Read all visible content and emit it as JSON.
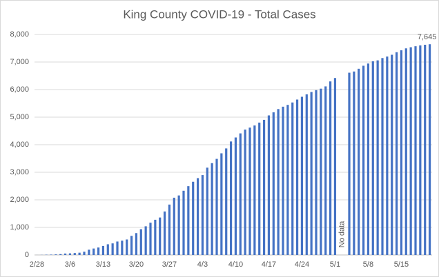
{
  "chart_data": {
    "type": "bar",
    "title": "King County COVID-19 - Total Cases",
    "categories": [
      "2/28",
      null,
      null,
      null,
      null,
      null,
      null,
      "3/6",
      null,
      null,
      null,
      null,
      null,
      null,
      "3/13",
      null,
      null,
      null,
      null,
      null,
      null,
      "3/20",
      null,
      null,
      null,
      null,
      null,
      null,
      "3/27",
      null,
      null,
      null,
      null,
      null,
      null,
      "4/3",
      null,
      null,
      null,
      null,
      null,
      null,
      "4/10",
      null,
      null,
      null,
      null,
      null,
      null,
      "4/17",
      null,
      null,
      null,
      null,
      null,
      null,
      "4/24",
      null,
      null,
      null,
      null,
      null,
      null,
      "5/1",
      null,
      null,
      null,
      null,
      null,
      null,
      "5/8",
      null,
      null,
      null,
      null,
      null,
      null,
      "5/15",
      null,
      null,
      null,
      null,
      null,
      null
    ],
    "values": [
      1,
      4,
      10,
      14,
      21,
      31,
      51,
      58,
      71,
      83,
      116,
      190,
      234,
      270,
      328,
      388,
      420,
      488,
      518,
      562,
      693,
      793,
      934,
      1040,
      1170,
      1277,
      1359,
      1577,
      1828,
      2077,
      2159,
      2330,
      2496,
      2656,
      2787,
      2898,
      3167,
      3331,
      3486,
      3688,
      3865,
      4117,
      4262,
      4411,
      4549,
      4620,
      4697,
      4802,
      4902,
      5063,
      5174,
      5293,
      5379,
      5445,
      5532,
      5638,
      5739,
      5828,
      5913,
      5979,
      6033,
      6115,
      6296,
      6419,
      null,
      null,
      6612,
      6656,
      6755,
      6865,
      6945,
      7027,
      7060,
      7143,
      7199,
      7263,
      7356,
      7426,
      7495,
      7536,
      7572,
      7604,
      7626,
      7645
    ],
    "value_labels": [
      null,
      null,
      null,
      null,
      null,
      null,
      null,
      null,
      null,
      null,
      null,
      null,
      null,
      null,
      null,
      null,
      null,
      null,
      null,
      null,
      null,
      null,
      null,
      null,
      null,
      null,
      null,
      null,
      null,
      null,
      null,
      null,
      null,
      null,
      null,
      null,
      null,
      null,
      null,
      null,
      null,
      null,
      null,
      null,
      null,
      null,
      null,
      null,
      null,
      null,
      null,
      null,
      null,
      null,
      null,
      null,
      null,
      null,
      null,
      null,
      null,
      null,
      null,
      null,
      null,
      null,
      null,
      null,
      null,
      null,
      null,
      null,
      null,
      null,
      null,
      null,
      null,
      null,
      null,
      null,
      null,
      null,
      null,
      "7,645"
    ],
    "annotation": "No data",
    "color": "#4472c4",
    "ylim": [
      0,
      8000
    ],
    "yticks": [
      0,
      {
        "value": 1000,
        "label": "1,000"
      },
      {
        "value": 2000,
        "label": "2,000"
      },
      {
        "value": 3000,
        "label": "3,000"
      },
      {
        "value": 4000,
        "label": "4,000"
      },
      {
        "value": 5000,
        "label": "5,000"
      },
      {
        "value": 6000,
        "label": "6,000"
      },
      {
        "value": 7000,
        "label": "7,000"
      },
      {
        "value": 8000,
        "label": "8,000"
      }
    ],
    "grid": true
  }
}
